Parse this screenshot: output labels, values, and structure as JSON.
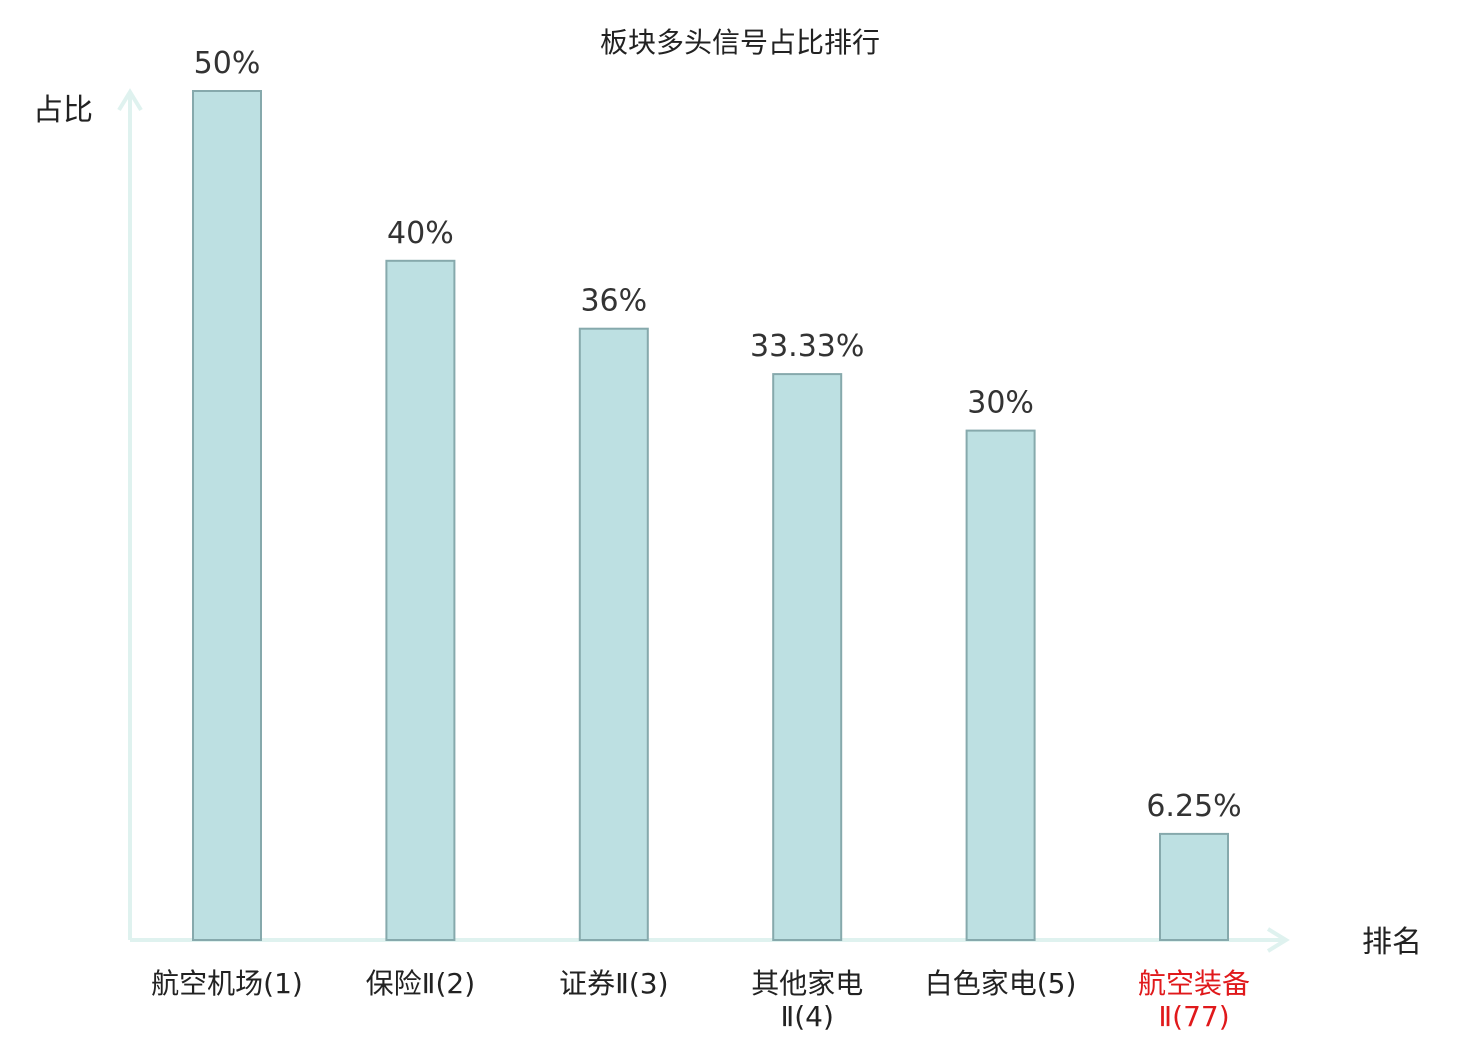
{
  "chart_data": {
    "type": "bar",
    "title": "板块多头信号占比排行",
    "ylabel": "占比",
    "xlabel": "排名",
    "ylim": [
      0,
      50
    ],
    "grid": false,
    "legend": "none",
    "categories": [
      {
        "lines": [
          "航空机场(1)"
        ],
        "highlight": false
      },
      {
        "lines": [
          "保险Ⅱ(2)"
        ],
        "highlight": false
      },
      {
        "lines": [
          "证券Ⅱ(3)"
        ],
        "highlight": false
      },
      {
        "lines": [
          "其他家电",
          "Ⅱ(4)"
        ],
        "highlight": false
      },
      {
        "lines": [
          "白色家电(5)"
        ],
        "highlight": false
      },
      {
        "lines": [
          "航空装备",
          "Ⅱ(77)"
        ],
        "highlight": true
      }
    ],
    "values": [
      50,
      40,
      36,
      33.33,
      30,
      6.25
    ],
    "value_labels": [
      "50%",
      "40%",
      "36%",
      "33.33%",
      "30%",
      "6.25%"
    ],
    "colors": {
      "bar_fill": "#bde0e2",
      "bar_stroke": "#86a9ac",
      "axis": "#dff2ef",
      "text": "#222222",
      "value_text": "#333333",
      "highlight_text": "#e0191b"
    }
  }
}
